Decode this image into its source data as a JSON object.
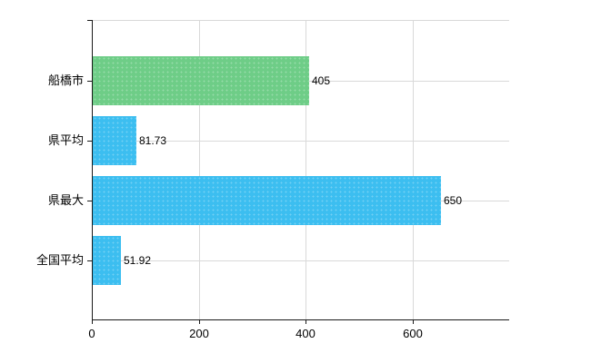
{
  "chart_data": {
    "type": "bar",
    "orientation": "horizontal",
    "title": "",
    "xlabel": "",
    "ylabel": "",
    "categories": [
      "船橋市",
      "県平均",
      "県最大",
      "全国平均"
    ],
    "values": [
      405,
      81.73,
      650,
      51.92
    ],
    "value_labels": [
      "405",
      "81.73",
      "650",
      "51.92"
    ],
    "bar_colors": [
      "#6ecd87",
      "#3cbef0",
      "#3cbef0",
      "#3cbef0"
    ],
    "x_ticks": [
      0,
      200,
      400,
      600
    ],
    "x_tick_labels": [
      "0",
      "200",
      "400",
      "600"
    ],
    "xlim": [
      0,
      780
    ],
    "grid": true,
    "legend": "none"
  },
  "colors": {
    "background": "#ffffff",
    "grid": "#d9d9d9",
    "axis": "#1a1a1a",
    "text": "#000000",
    "bar_green": "#6ecd87",
    "bar_blue": "#3cbef0"
  }
}
